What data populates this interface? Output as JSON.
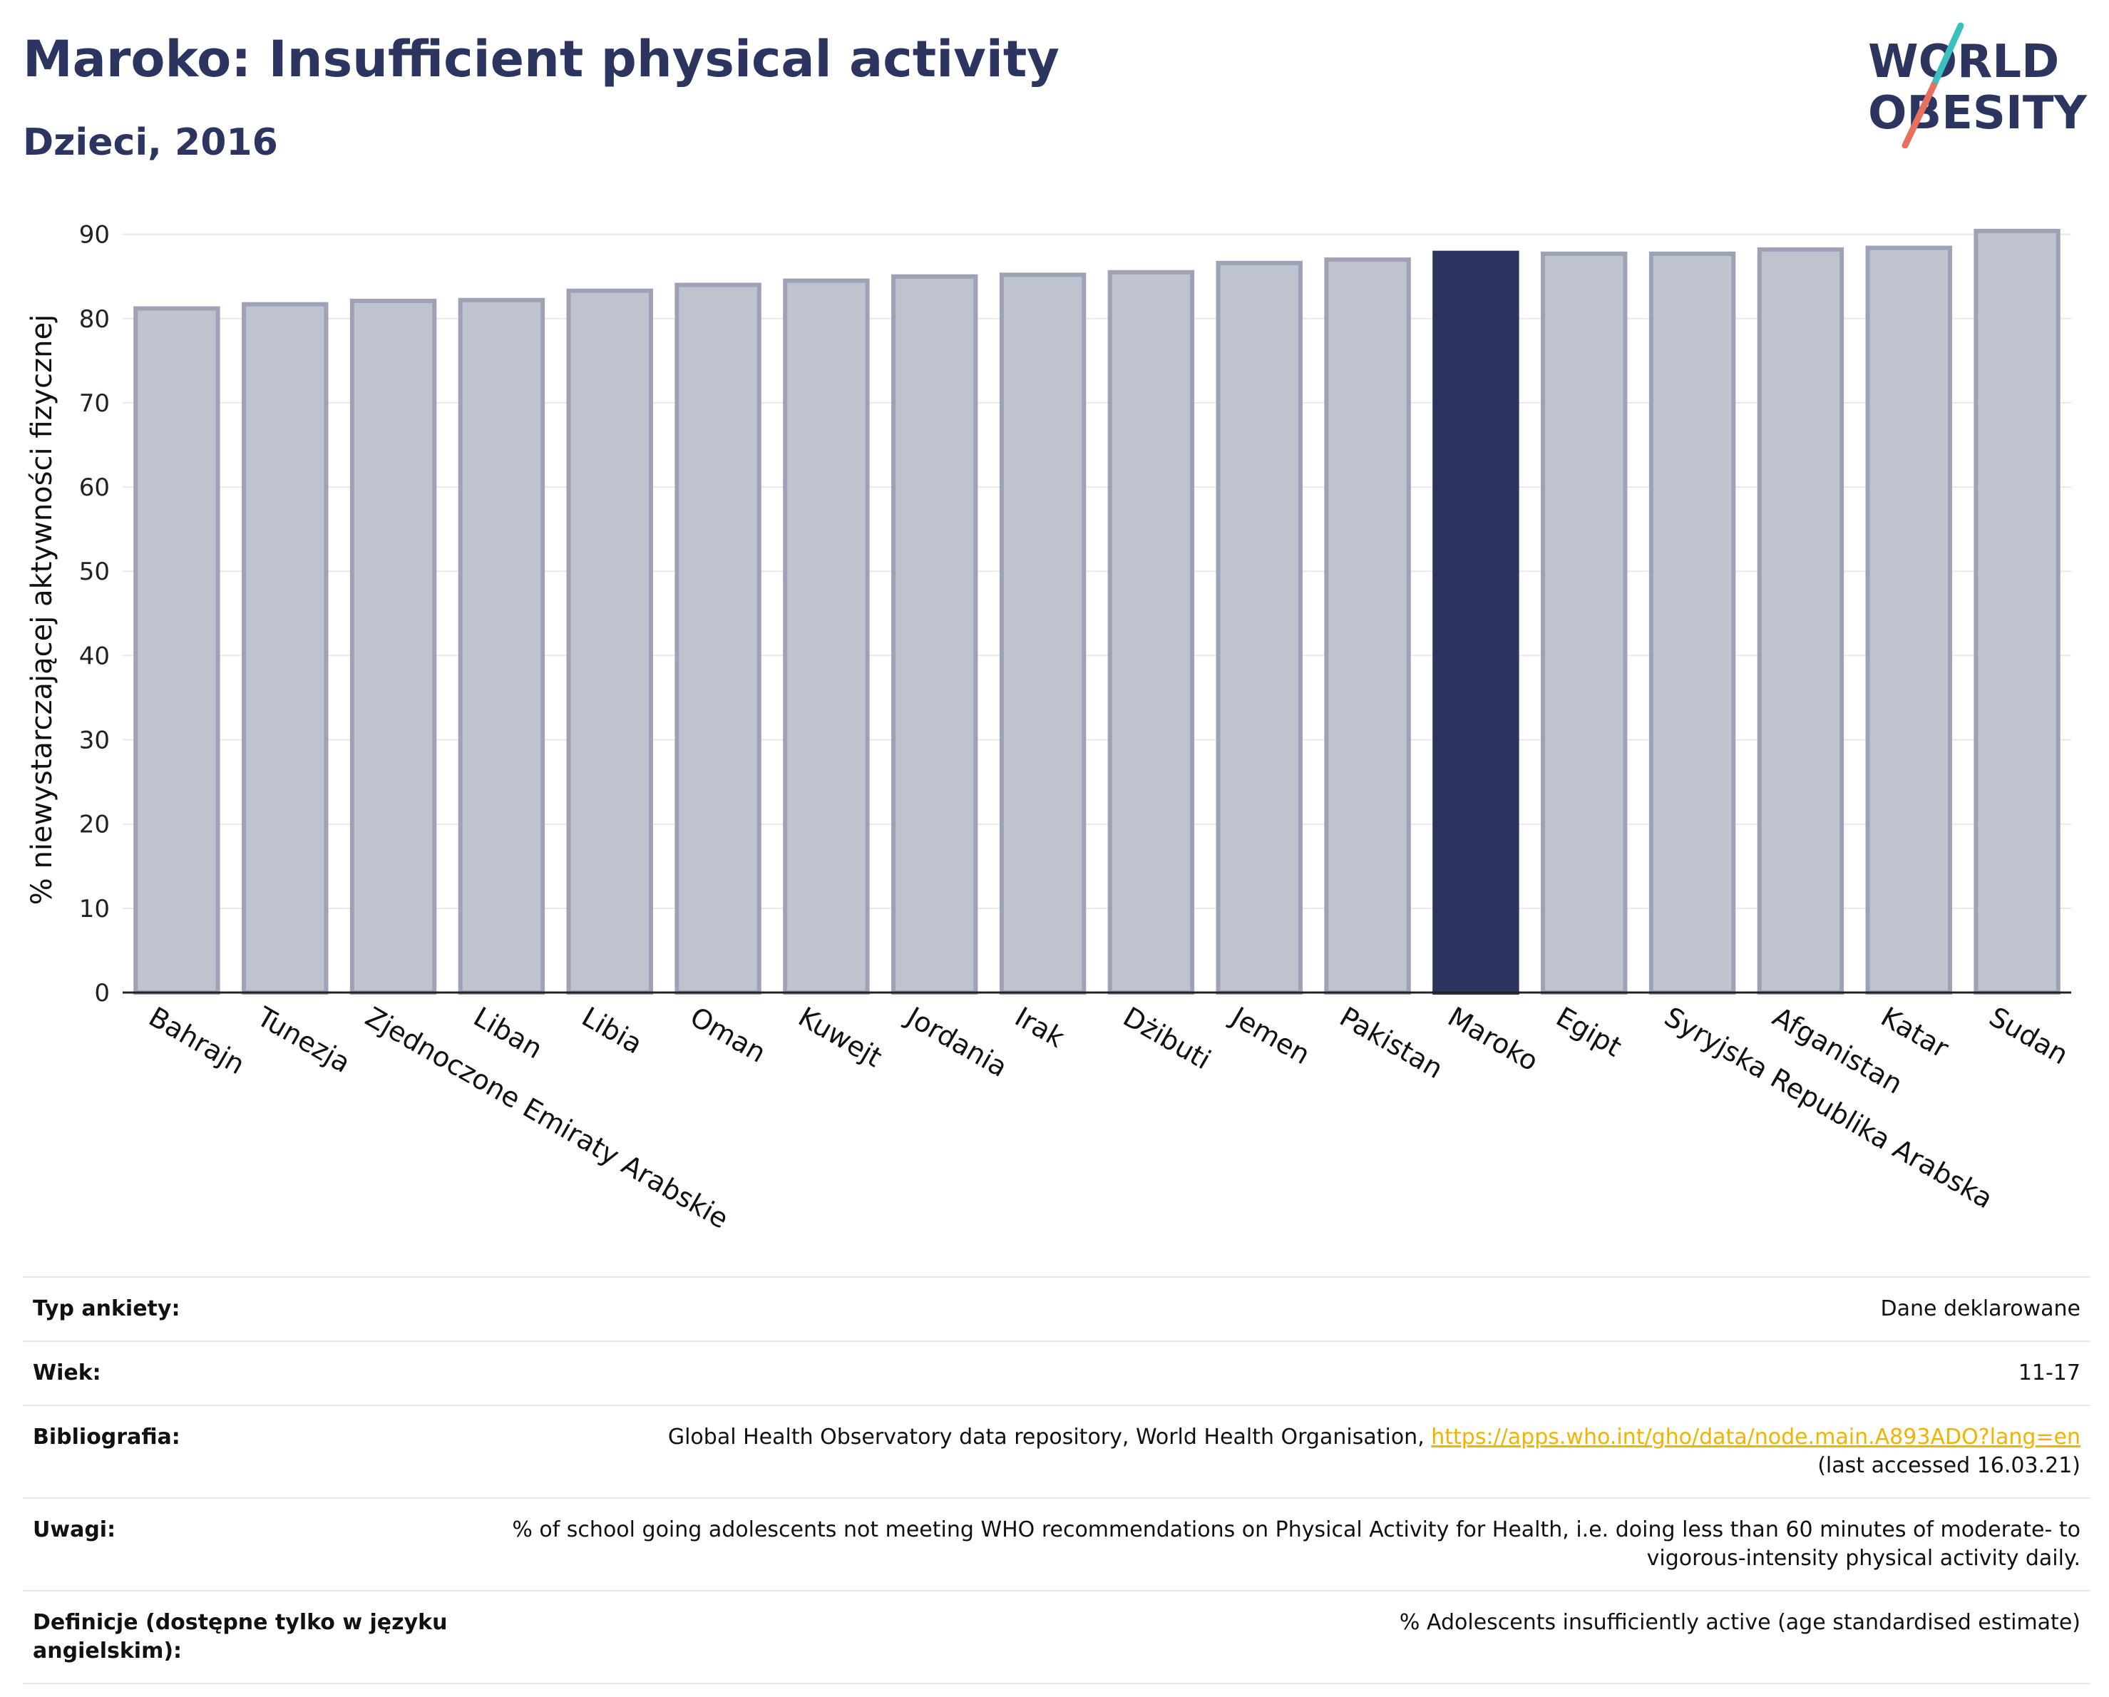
{
  "header": {
    "title": "Maroko: Insufficient physical activity",
    "subtitle": "Dzieci, 2016"
  },
  "logo": {
    "line1": "WORLD",
    "line2": "OBESITY",
    "accent_colors": [
      "#3bbfbf",
      "#e8705f"
    ]
  },
  "chart_data": {
    "type": "bar",
    "ylabel": "% niewystarczającej aktywności fizycznej",
    "ylim": [
      0,
      90
    ],
    "yticks": [
      0,
      10,
      20,
      30,
      40,
      50,
      60,
      70,
      80,
      90
    ],
    "grid": true,
    "categories": [
      "Bahrajn",
      "Tunezja",
      "Zjednoczone Emiraty Arabskie",
      "Liban",
      "Libia",
      "Oman",
      "Kuwejt",
      "Jordania",
      "Irak",
      "Dżibuti",
      "Jemen",
      "Pakistan",
      "Maroko",
      "Egipt",
      "Syryjska Republika Arabska",
      "Afganistan",
      "Katar",
      "Sudan"
    ],
    "values": [
      81.2,
      81.7,
      82.1,
      82.2,
      83.3,
      84.0,
      84.5,
      85.0,
      85.2,
      85.5,
      86.6,
      87.0,
      87.8,
      87.7,
      87.7,
      88.2,
      88.4,
      90.4
    ],
    "highlight": "Maroko",
    "colors": {
      "bar": "#bfc2cf",
      "bar_edge": "#9ea2b7",
      "highlight": "#2b3560"
    }
  },
  "info": [
    {
      "label": "Typ ankiety:",
      "value": "Dane deklarowane"
    },
    {
      "label": "Wiek:",
      "value": "11-17"
    },
    {
      "label": "Bibliografia:",
      "value": "Global Health Observatory data repository, World Health Organisation, ",
      "link": "https://apps.who.int/gho/data/node.main.A893ADO?lang=en",
      "extra": "(last accessed 16.03.21)"
    },
    {
      "label": "Uwagi:",
      "value": "% of school going adolescents not meeting WHO recommendations on Physical Activity for Health, i.e. doing less than 60 minutes of moderate- to vigorous-intensity physical activity daily."
    },
    {
      "label": "Definicje (dostępne tylko w języku angielskim):",
      "value": "% Adolescents insufficiently active (age standardised estimate)"
    }
  ]
}
